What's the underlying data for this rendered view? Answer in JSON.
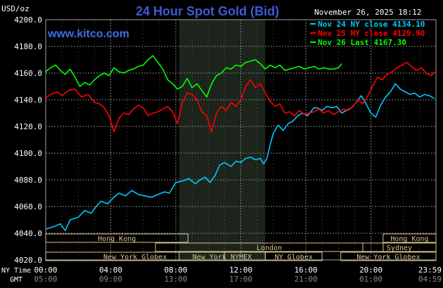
{
  "title": "24 Hour Spot Gold (Bid)",
  "datetime": "November 26, 2025 18:12",
  "watermark": "www.kitco.com",
  "unit_label": "USD/oz",
  "time_labels": {
    "ny": "NY Time",
    "gmt": "GMT"
  },
  "colors": {
    "background": "#000000",
    "grid": "#808080",
    "title": "#3b5bd6",
    "watermark": "#3f6fe6",
    "nov24": "#00c8ff",
    "nov25": "#ff0000",
    "nov26": "#00ff00",
    "session_fill": "#1c241c",
    "session_box": "#d8c48c"
  },
  "legend": [
    {
      "label": "Nov 24 NY close 4134.10",
      "color": "#00c8ff"
    },
    {
      "label": "Nov 25 NY close 4129.90",
      "color": "#ff0000"
    },
    {
      "label": "Nov 26 Last 4167.30",
      "color": "#00ff00"
    }
  ],
  "sessions": [
    {
      "name": "Hong Kong",
      "start": 0,
      "end": 8.75
    },
    {
      "name": "London",
      "start": 6.75,
      "end": 20.75
    },
    {
      "name": "New York Globex",
      "start": 0,
      "end": 11
    },
    {
      "name": "New York NYMEX",
      "start": 8.2,
      "end": 13.5
    },
    {
      "name": "NY Globex",
      "start": 13.5,
      "end": 17
    },
    {
      "name": "New York Globex",
      "start": 18.15,
      "end": 24
    },
    {
      "name": "Sydney",
      "start": 19.5,
      "end": 24
    },
    {
      "name": "Hong Kong",
      "start": 20.75,
      "end": 24
    }
  ],
  "chart_data": {
    "type": "line",
    "x_unit": "hours (NY time)",
    "xlim": [
      0,
      24
    ],
    "ylim": [
      4020,
      4200
    ],
    "yticks": [
      4020,
      4040,
      4060,
      4080,
      4100,
      4120,
      4140,
      4160,
      4180,
      4200
    ],
    "xticks": [
      {
        "h": 0,
        "ny": "00:00",
        "gmt": "05:00"
      },
      {
        "h": 4,
        "ny": "04:00",
        "gmt": "09:00"
      },
      {
        "h": 8,
        "ny": "08:00",
        "gmt": "13:00"
      },
      {
        "h": 12,
        "ny": "12:00",
        "gmt": "17:00"
      },
      {
        "h": 16,
        "ny": "16:00",
        "gmt": "21:00"
      },
      {
        "h": 20,
        "ny": "20:00",
        "gmt": "01:00"
      },
      {
        "h": 24,
        "ny": "23:59",
        "gmt": "04:59"
      }
    ],
    "highlight_range": [
      8.2,
      13.5
    ],
    "series": [
      {
        "name": "Nov 24",
        "color": "#00c8ff",
        "x": [
          0,
          0.5,
          0.9,
          1.2,
          1.5,
          2,
          2.4,
          2.8,
          3.1,
          3.4,
          3.8,
          4.2,
          4.5,
          4.9,
          5.3,
          5.7,
          6.1,
          6.5,
          6.9,
          7.3,
          7.6,
          8,
          8.4,
          8.8,
          9.2,
          9.5,
          9.8,
          10.1,
          10.4,
          10.7,
          11,
          11.4,
          11.7,
          12,
          12.3,
          12.6,
          12.9,
          13.2,
          13.4,
          13.6,
          13.8,
          14,
          14.3,
          14.6,
          14.9,
          15.2,
          15.5,
          15.8,
          16.1,
          16.3,
          16.5,
          16.7,
          17,
          17.3,
          17.6,
          17.9,
          18.2,
          18.5,
          18.8,
          19.1,
          19.4,
          19.7,
          20,
          20.3,
          20.6,
          20.9,
          21.2,
          21.5,
          21.8,
          22.1,
          22.4,
          22.7,
          23,
          23.3,
          23.6,
          23.9
        ],
        "values": [
          4043,
          4045,
          4047,
          4042,
          4050,
          4052,
          4057,
          4055,
          4060,
          4064,
          4062,
          4067,
          4070,
          4068,
          4072,
          4069,
          4068,
          4067,
          4069,
          4071,
          4070,
          4078,
          4079,
          4081,
          4077,
          4080,
          4082,
          4078,
          4083,
          4091,
          4093,
          4090,
          4094,
          4093,
          4096,
          4097,
          4095,
          4096,
          4092,
          4096,
          4106,
          4115,
          4121,
          4117,
          4122,
          4124,
          4128,
          4130,
          4128,
          4131,
          4134,
          4134,
          4132,
          4135,
          4134,
          4135,
          4130,
          4132,
          4134,
          4138,
          4143,
          4137,
          4130,
          4127,
          4136,
          4142,
          4146,
          4152,
          4148,
          4146,
          4144,
          4145,
          4142,
          4144,
          4143,
          4141
        ]
      },
      {
        "name": "Nov 25",
        "color": "#ff0000",
        "x": [
          0,
          0.3,
          0.7,
          1,
          1.4,
          1.8,
          2.2,
          2.6,
          3,
          3.3,
          3.6,
          3.9,
          4.2,
          4.5,
          4.8,
          5.1,
          5.4,
          5.7,
          6,
          6.3,
          6.6,
          6.9,
          7.2,
          7.5,
          7.8,
          8.1,
          8.4,
          8.7,
          9,
          9.3,
          9.6,
          9.9,
          10.2,
          10.5,
          10.8,
          11.1,
          11.4,
          11.7,
          12,
          12.3,
          12.6,
          12.9,
          13.2,
          13.5,
          13.8,
          14.1,
          14.4,
          14.7,
          15,
          15.3,
          15.6,
          15.9,
          16.2,
          16.5,
          16.8,
          17.1,
          17.4,
          17.7,
          18,
          18.3,
          18.6,
          18.9,
          19.2,
          19.5,
          19.8,
          20.1,
          20.4,
          20.7,
          21,
          21.3,
          21.6,
          21.9,
          22.2,
          22.5,
          22.8,
          23.1,
          23.4,
          23.7,
          23.9
        ],
        "values": [
          4141,
          4144,
          4146,
          4143,
          4147,
          4148,
          4142,
          4144,
          4138,
          4137,
          4134,
          4128,
          4116,
          4126,
          4130,
          4129,
          4133,
          4136,
          4134,
          4128,
          4130,
          4131,
          4133,
          4135,
          4131,
          4122,
          4138,
          4145,
          4144,
          4140,
          4131,
          4128,
          4116,
          4130,
          4135,
          4132,
          4138,
          4135,
          4140,
          4150,
          4155,
          4149,
          4152,
          4145,
          4139,
          4135,
          4137,
          4130,
          4131,
          4128,
          4132,
          4129,
          4130,
          4131,
          4133,
          4130,
          4132,
          4129,
          4131,
          4133,
          4132,
          4135,
          4140,
          4137,
          4143,
          4150,
          4157,
          4155,
          4159,
          4161,
          4164,
          4166,
          4168,
          4165,
          4162,
          4164,
          4160,
          4158,
          4161
        ]
      },
      {
        "name": "Nov 26",
        "color": "#00ff00",
        "x": [
          0,
          0.3,
          0.6,
          0.9,
          1.2,
          1.5,
          1.8,
          2.1,
          2.4,
          2.7,
          3,
          3.3,
          3.6,
          3.9,
          4.2,
          4.5,
          4.8,
          5.1,
          5.4,
          5.7,
          6,
          6.3,
          6.6,
          6.9,
          7.2,
          7.5,
          7.8,
          8.1,
          8.4,
          8.7,
          9,
          9.3,
          9.6,
          9.9,
          10.2,
          10.5,
          10.8,
          11.1,
          11.4,
          11.7,
          12,
          12.3,
          12.6,
          12.9,
          13.2,
          13.5,
          13.8,
          14.1,
          14.4,
          14.7,
          15,
          15.3,
          15.6,
          15.9,
          16.2,
          16.5,
          16.8,
          17.1,
          17.4,
          17.7,
          18,
          18.2
        ],
        "values": [
          4161,
          4164,
          4166,
          4162,
          4159,
          4163,
          4157,
          4150,
          4153,
          4151,
          4155,
          4158,
          4160,
          4158,
          4164,
          4161,
          4160,
          4162,
          4163,
          4165,
          4166,
          4170,
          4173,
          4168,
          4163,
          4155,
          4152,
          4148,
          4150,
          4156,
          4149,
          4152,
          4147,
          4142,
          4152,
          4158,
          4160,
          4164,
          4163,
          4166,
          4165,
          4168,
          4169,
          4170,
          4167,
          4163,
          4166,
          4164,
          4166,
          4162,
          4163,
          4164,
          4165,
          4163,
          4164,
          4165,
          4163,
          4164,
          4163,
          4163,
          4164,
          4167
        ]
      }
    ]
  }
}
